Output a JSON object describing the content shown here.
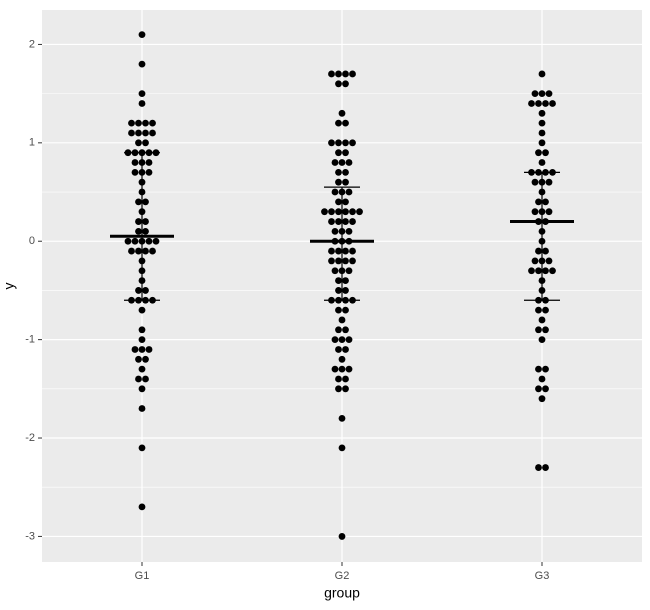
{
  "chart_data": {
    "type": "dotplot",
    "x_label": "group",
    "y_label": "y",
    "categories": [
      "G1",
      "G2",
      "G3"
    ],
    "values": [
      [
        2.1,
        1.8,
        1.5,
        1.4,
        1.2,
        1.2,
        1.2,
        1.2,
        1.1,
        1.1,
        1.1,
        1.1,
        1.0,
        1.0,
        0.9,
        0.9,
        0.9,
        0.9,
        0.9,
        0.8,
        0.8,
        0.8,
        0.7,
        0.7,
        0.7,
        0.6,
        0.5,
        0.4,
        0.4,
        0.3,
        0.2,
        0.2,
        0.1,
        0.1,
        0.0,
        0.0,
        0.0,
        0.0,
        0.0,
        -0.1,
        -0.1,
        -0.1,
        -0.1,
        -0.2,
        -0.3,
        -0.4,
        -0.5,
        -0.5,
        -0.6,
        -0.6,
        -0.6,
        -0.6,
        -0.7,
        -0.9,
        -1.0,
        -1.1,
        -1.1,
        -1.1,
        -1.2,
        -1.2,
        -1.3,
        -1.4,
        -1.4,
        -1.5,
        -1.7,
        -2.1,
        -2.7
      ],
      [
        1.7,
        1.7,
        1.7,
        1.7,
        1.6,
        1.6,
        1.3,
        1.2,
        1.2,
        1.0,
        1.0,
        1.0,
        1.0,
        0.9,
        0.9,
        0.8,
        0.8,
        0.8,
        0.7,
        0.7,
        0.6,
        0.6,
        0.5,
        0.5,
        0.5,
        0.4,
        0.4,
        0.3,
        0.3,
        0.3,
        0.3,
        0.3,
        0.3,
        0.2,
        0.2,
        0.2,
        0.2,
        0.1,
        0.1,
        0.1,
        0.0,
        0.0,
        0.0,
        -0.1,
        -0.1,
        -0.1,
        -0.1,
        -0.2,
        -0.2,
        -0.2,
        -0.2,
        -0.3,
        -0.3,
        -0.3,
        -0.4,
        -0.4,
        -0.5,
        -0.5,
        -0.6,
        -0.6,
        -0.6,
        -0.6,
        -0.7,
        -0.7,
        -0.8,
        -0.9,
        -0.9,
        -1.0,
        -1.0,
        -1.0,
        -1.1,
        -1.1,
        -1.2,
        -1.3,
        -1.3,
        -1.3,
        -1.4,
        -1.4,
        -1.5,
        -1.5,
        -1.8,
        -2.1,
        -3.0
      ],
      [
        1.7,
        1.5,
        1.5,
        1.5,
        1.4,
        1.4,
        1.4,
        1.4,
        1.3,
        1.2,
        1.1,
        1.0,
        0.9,
        0.9,
        0.8,
        0.7,
        0.7,
        0.7,
        0.7,
        0.6,
        0.6,
        0.6,
        0.5,
        0.4,
        0.4,
        0.3,
        0.3,
        0.3,
        0.2,
        0.2,
        0.1,
        0.0,
        -0.1,
        -0.1,
        -0.2,
        -0.2,
        -0.2,
        -0.3,
        -0.3,
        -0.3,
        -0.3,
        -0.4,
        -0.5,
        -0.6,
        -0.6,
        -0.7,
        -0.7,
        -0.8,
        -0.9,
        -0.9,
        -1.0,
        -1.3,
        -1.3,
        -1.4,
        -1.5,
        -1.5,
        -1.6,
        -2.3,
        -2.3
      ]
    ],
    "means": [
      0.05,
      0.0,
      0.2
    ],
    "lower": [
      -0.6,
      -0.6,
      -0.6
    ],
    "upper": [
      0.9,
      0.55,
      0.7
    ],
    "color": "#000000",
    "background": "#ebebeb",
    "ylim": [
      -3.26,
      2.35
    ],
    "yticks": [
      -3,
      -2,
      -1,
      0,
      1,
      2
    ],
    "grid": true
  }
}
